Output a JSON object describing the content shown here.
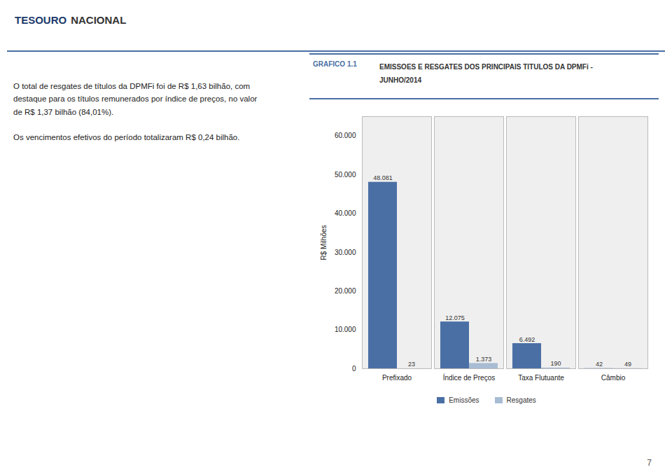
{
  "chart_data": {
    "type": "bar",
    "title": "EMISSOES E RESGATES DOS PRINCIPAIS TITULOS DA DPMFi -\nJUNHO/2014",
    "annotations": [
      "GRAFICO 1.1"
    ],
    "ylabel": "R$ Milhões",
    "categories": [
      "Prefixado",
      "Índice de Preços",
      "Taxa Flutuante",
      "Câmbio"
    ],
    "series": [
      {
        "name": "Emissões",
        "color": "#4a6fa5",
        "values": [
          48081,
          12075,
          6492,
          42
        ],
        "value_labels": [
          "48.081",
          "12.075",
          "6.492",
          "42"
        ]
      },
      {
        "name": "Resgates",
        "color": "#a8bcd4",
        "values": [
          23,
          1373,
          190,
          49
        ],
        "value_labels": [
          "23",
          "1.373",
          "190",
          "49"
        ]
      }
    ],
    "ylim": [
      0,
      65000
    ],
    "yticks": [
      0,
      {
        "value": 10000,
        "label": "10.000"
      },
      {
        "value": 20000,
        "label": "20.000"
      },
      {
        "value": 30000,
        "label": "30.000"
      },
      {
        "value": 40000,
        "label": "40.000"
      },
      {
        "value": 50000,
        "label": "50.000"
      },
      {
        "value": 60000,
        "label": "60.000"
      }
    ],
    "grid": false,
    "legend": "bottom",
    "data_labels": true
  },
  "page": {
    "header": [
      "TESOURO",
      "NACIONAL"
    ],
    "body": [
      [
        "O total de resgates de títulos da DPMFi foi de R$ 1,63 bilhão, com",
        "destaque para os títulos remunerados por índice de preços, no valor",
        "de R$ 1,37 bilhão (84,01%)."
      ],
      [
        "Os vencimentos efetivos do período totalizaram R$ 0,24 bilhão."
      ]
    ],
    "page_number": "7"
  }
}
